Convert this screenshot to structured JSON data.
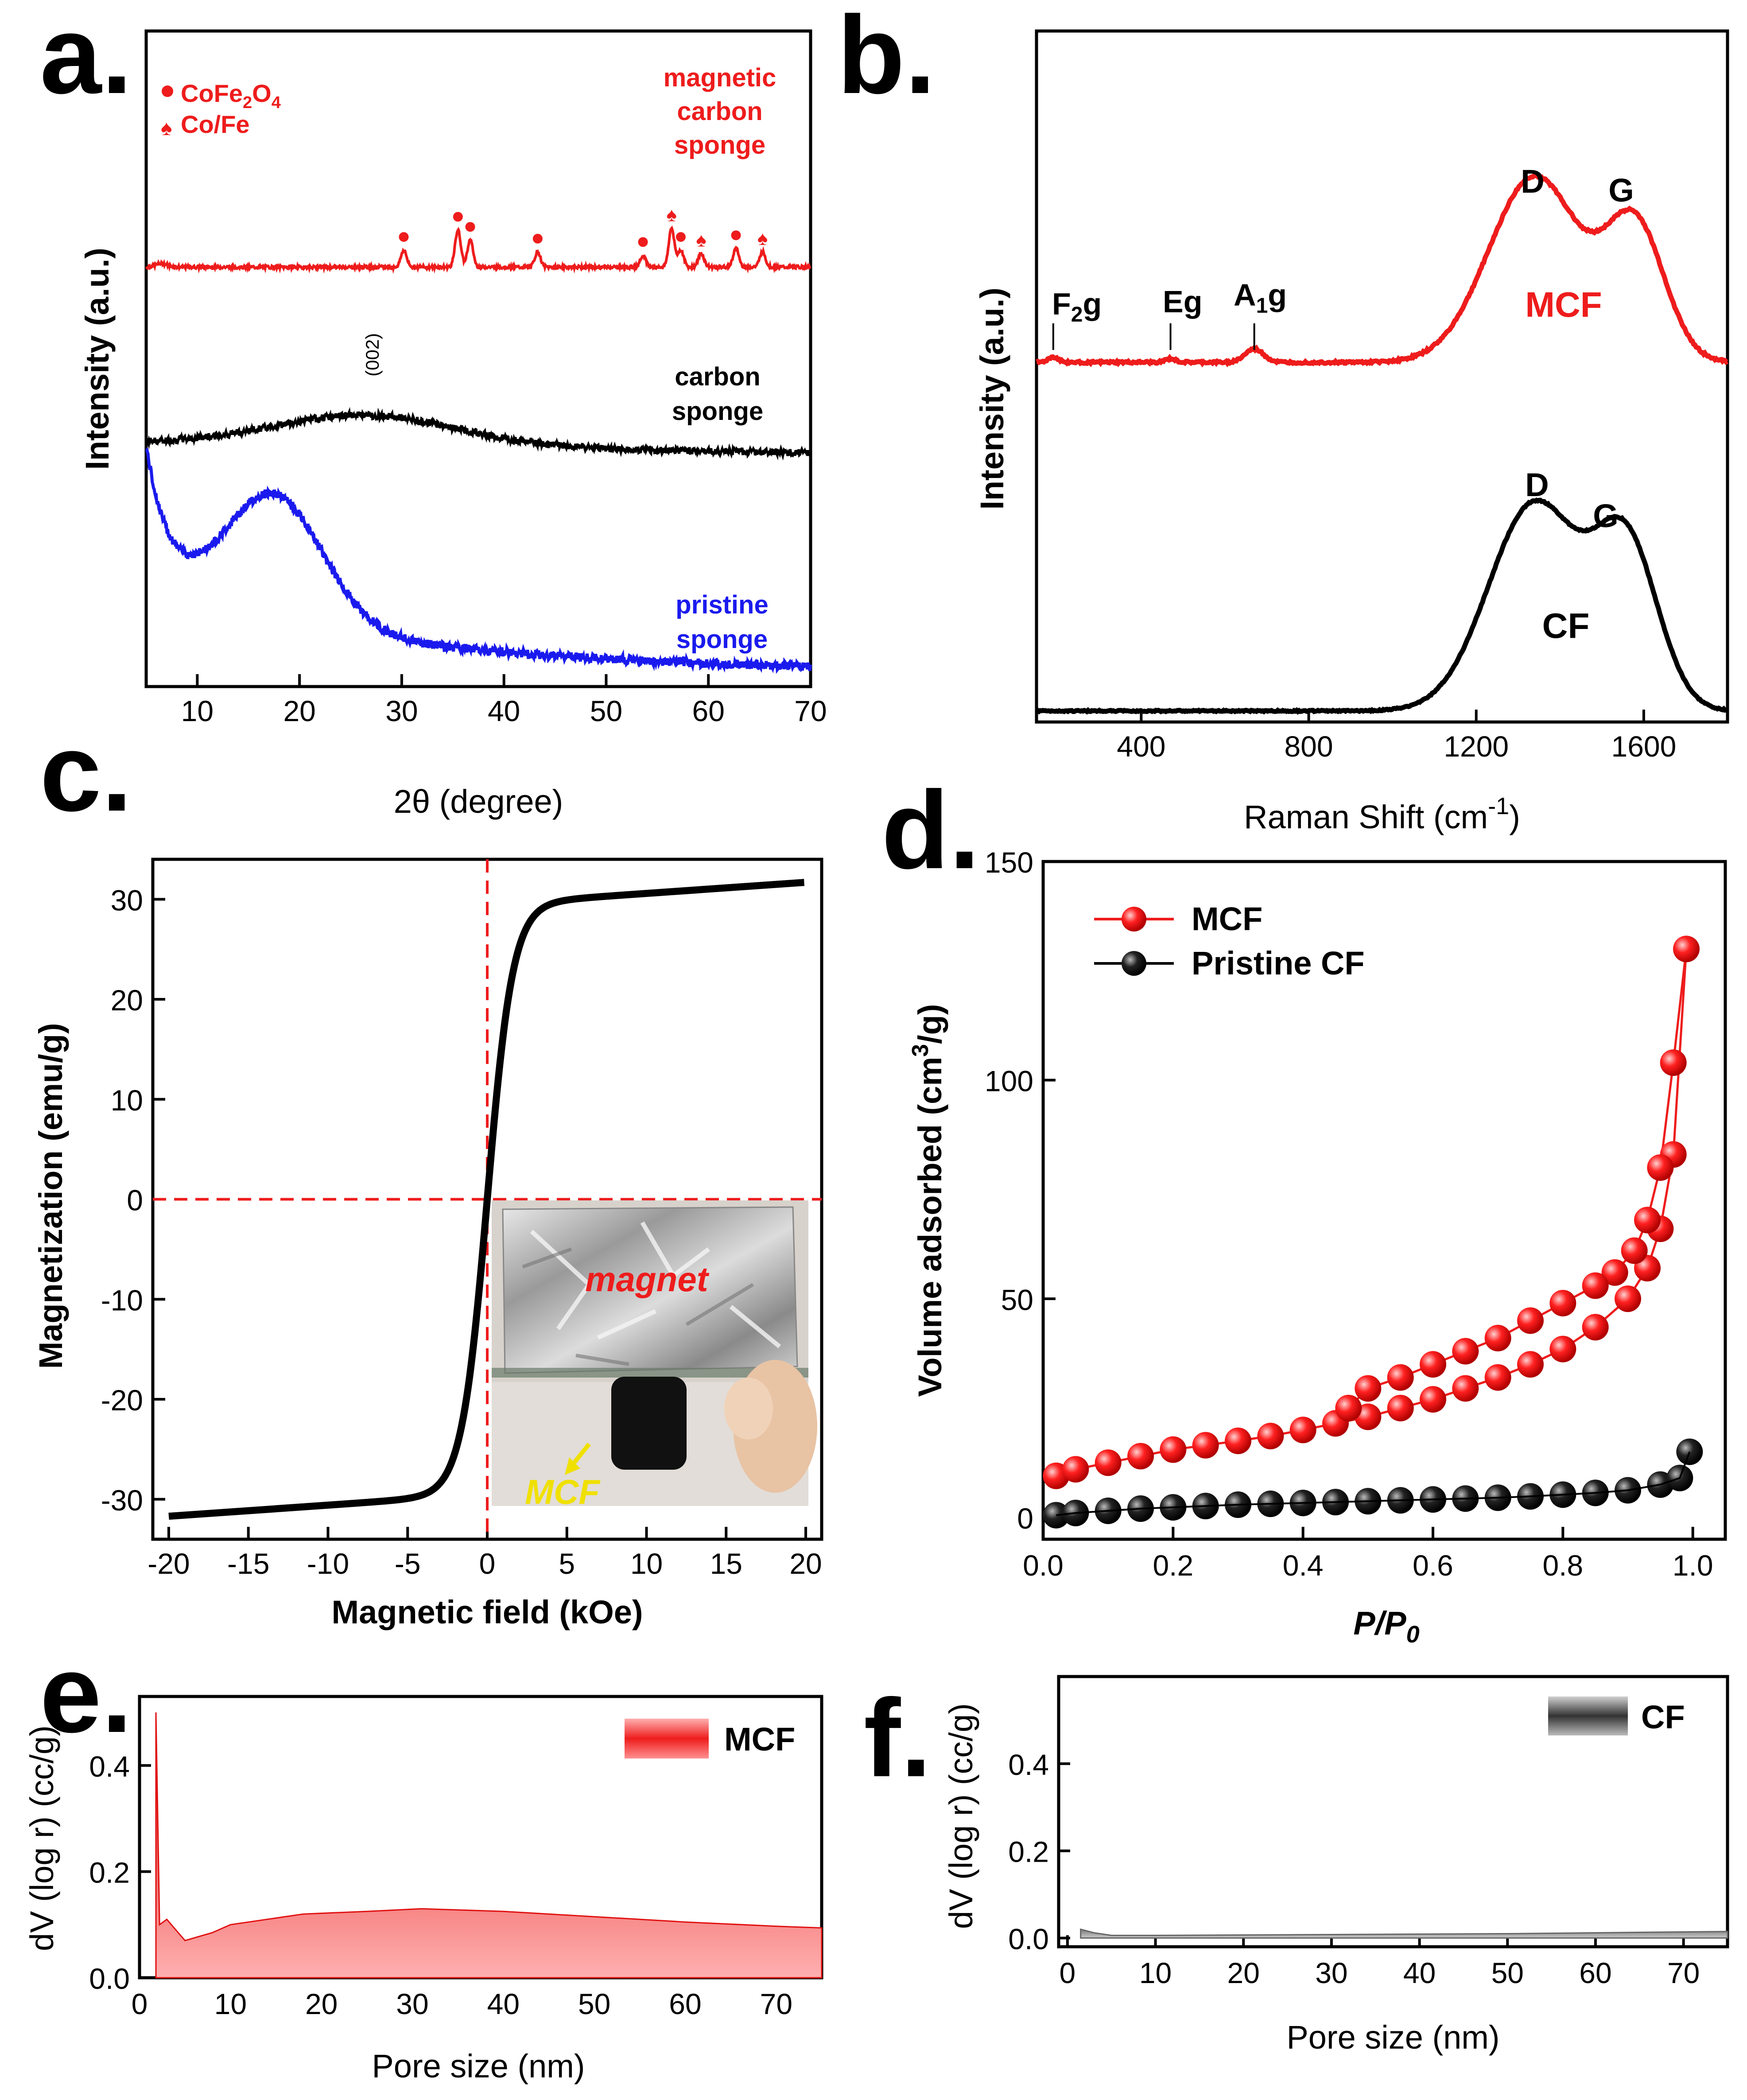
{
  "colors": {
    "red": "#ee1c1c",
    "black": "#000000",
    "blue": "#1a1aee",
    "yellow": "#f0e000"
  },
  "chart_data": [
    {
      "panel": "a.",
      "type": "line",
      "xlabel": "2θ (degree)",
      "ylabel": "Intensity (a.u.)",
      "xlim": [
        5,
        70
      ],
      "xticks": [
        10,
        20,
        30,
        40,
        50,
        60,
        70
      ],
      "legend": {
        "oxide": "CoFe2O4",
        "oxide_parts": [
          "CoFe",
          "2",
          "O",
          "4"
        ],
        "alloy": "Co/Fe"
      },
      "peak_label": "(002)",
      "series": [
        {
          "name": "magnetic carbon sponge",
          "lines": [
            "magnetic",
            "carbon",
            "sponge"
          ],
          "color": "#ee1c1c",
          "peaks": [
            {
              "x": 30.2,
              "h": 1.0,
              "m": "dot"
            },
            {
              "x": 35.5,
              "h": 2.2,
              "m": "dot"
            },
            {
              "x": 36.7,
              "h": 1.6,
              "m": "dot"
            },
            {
              "x": 43.3,
              "h": 0.9,
              "m": "dot"
            },
            {
              "x": 53.6,
              "h": 0.7,
              "m": "dot"
            },
            {
              "x": 57.3,
              "h": 1.0,
              "m": "dot"
            },
            {
              "x": 56.4,
              "h": 2.3,
              "m": "spade"
            },
            {
              "x": 59.3,
              "h": 0.8,
              "m": "spade"
            },
            {
              "x": 62.7,
              "h": 1.1,
              "m": "dot"
            },
            {
              "x": 65.3,
              "h": 0.9,
              "m": "spade"
            }
          ]
        },
        {
          "name": "carbon sponge",
          "lines": [
            "carbon",
            "sponge"
          ],
          "color": "#000000",
          "peak_x": 26.5
        },
        {
          "name": "pristine sponge",
          "lines": [
            "pristine",
            "sponge"
          ],
          "color": "#1a1aee",
          "peak_x": 17.5
        }
      ]
    },
    {
      "panel": "b.",
      "type": "line",
      "xlabel_main": "Raman Shift (cm",
      "xlabel_sup": "-1",
      "xlabel_end": ")",
      "ylabel": "Intensity (a.u.)",
      "xlim": [
        150,
        1800
      ],
      "xticks": [
        400,
        800,
        1200,
        1600
      ],
      "band_labels": {
        "d": "D",
        "g": "G",
        "f2g": "F",
        "f2g_sub": "2",
        "f2g_tail": "g",
        "eg": "Eg",
        "a1g": "A",
        "a1g_sub": "1",
        "a1g_tail": "g"
      },
      "mode_x": {
        "f2g": 190,
        "eg": 470,
        "a1g": 670
      },
      "series": [
        {
          "name": "MCF",
          "color": "#ee1c1c",
          "d_x": 1340,
          "g_x": 1580
        },
        {
          "name": "CF",
          "color": "#000000",
          "d_x": 1340,
          "g_x": 1560
        }
      ]
    },
    {
      "panel": "c.",
      "type": "line",
      "xlabel": "Magnetic field (kOe)",
      "ylabel": "Magnetization (emu/g)",
      "xlim": [
        -21,
        21
      ],
      "ylim": [
        -34,
        34
      ],
      "xticks": [
        -20,
        -15,
        -10,
        -5,
        0,
        5,
        10,
        15,
        20
      ],
      "yticks": [
        -30,
        -20,
        -10,
        0,
        10,
        20,
        30
      ],
      "saturation": 31.7,
      "inset": {
        "magnet_label": "magnet",
        "sample_label": "MCF"
      }
    },
    {
      "panel": "d.",
      "type": "scatter",
      "xlabel_main": "P/P",
      "xlabel_sub": "0",
      "ylabel_main": "Volume adsorbed (cm",
      "ylabel_sup": "3",
      "ylabel_end": "/g)",
      "xlim": [
        0,
        1.05
      ],
      "ylim": [
        -5,
        150
      ],
      "xticks": [
        "0.0",
        "0.2",
        "0.4",
        "0.6",
        "0.8",
        "1.0"
      ],
      "yticks": [
        "0",
        "50",
        "100",
        "150"
      ],
      "series": [
        {
          "name": "MCF",
          "color": "#ee1c1c",
          "adsorption": [
            [
              0.02,
              9.5
            ],
            [
              0.05,
              11
            ],
            [
              0.1,
              12.5
            ],
            [
              0.15,
              14
            ],
            [
              0.2,
              15.5
            ],
            [
              0.25,
              16.5
            ],
            [
              0.3,
              17.5
            ],
            [
              0.35,
              18.6
            ],
            [
              0.4,
              20
            ],
            [
              0.45,
              21.5
            ],
            [
              0.5,
              23
            ],
            [
              0.55,
              25
            ],
            [
              0.6,
              27
            ],
            [
              0.65,
              29.5
            ],
            [
              0.7,
              32
            ],
            [
              0.75,
              35
            ],
            [
              0.8,
              38.5
            ],
            [
              0.85,
              43.5
            ],
            [
              0.9,
              50
            ],
            [
              0.93,
              57
            ],
            [
              0.95,
              66
            ],
            [
              0.97,
              83
            ],
            [
              0.99,
              130
            ]
          ],
          "desorption": [
            [
              0.97,
              104
            ],
            [
              0.95,
              80
            ],
            [
              0.93,
              68
            ],
            [
              0.91,
              61
            ],
            [
              0.88,
              56
            ],
            [
              0.85,
              53
            ],
            [
              0.8,
              49
            ],
            [
              0.75,
              45
            ],
            [
              0.7,
              41
            ],
            [
              0.65,
              38
            ],
            [
              0.6,
              35
            ],
            [
              0.55,
              32
            ],
            [
              0.5,
              29.5
            ],
            [
              0.47,
              25
            ]
          ]
        },
        {
          "name": "Pristine CF",
          "color": "#000000",
          "adsorption": [
            [
              0.02,
              0.5
            ],
            [
              0.05,
              1
            ],
            [
              0.1,
              1.5
            ],
            [
              0.15,
              2
            ],
            [
              0.2,
              2.3
            ],
            [
              0.25,
              2.6
            ],
            [
              0.3,
              2.9
            ],
            [
              0.35,
              3.1
            ],
            [
              0.4,
              3.3
            ],
            [
              0.45,
              3.5
            ],
            [
              0.5,
              3.7
            ],
            [
              0.55,
              3.9
            ],
            [
              0.6,
              4.1
            ],
            [
              0.65,
              4.3
            ],
            [
              0.7,
              4.5
            ],
            [
              0.75,
              4.8
            ],
            [
              0.8,
              5.2
            ],
            [
              0.85,
              5.6
            ],
            [
              0.9,
              6.2
            ],
            [
              0.95,
              7.5
            ],
            [
              0.98,
              9
            ],
            [
              0.995,
              15
            ]
          ]
        }
      ]
    },
    {
      "panel": "e.",
      "type": "area",
      "xlabel": "Pore size (nm)",
      "ylabel": "dV (log r) (cc/g)",
      "xlim": [
        0,
        75
      ],
      "ylim": [
        0,
        0.53
      ],
      "xticks": [
        0,
        10,
        20,
        30,
        40,
        50,
        60,
        70
      ],
      "yticks": [
        "0.0",
        "0.2",
        "0.4"
      ],
      "series": [
        {
          "name": "MCF",
          "color": "#ee1c1c",
          "points": [
            [
              1.8,
              0
            ],
            [
              1.8,
              0.5
            ],
            [
              2.2,
              0.1
            ],
            [
              3.0,
              0.11
            ],
            [
              4.0,
              0.09
            ],
            [
              5.0,
              0.07
            ],
            [
              6.0,
              0.075
            ],
            [
              8.0,
              0.085
            ],
            [
              10,
              0.1
            ],
            [
              14,
              0.11
            ],
            [
              18,
              0.12
            ],
            [
              25,
              0.125
            ],
            [
              31,
              0.13
            ],
            [
              40,
              0.125
            ],
            [
              50,
              0.115
            ],
            [
              60,
              0.105
            ],
            [
              70,
              0.097
            ],
            [
              75,
              0.094
            ],
            [
              75,
              0
            ]
          ]
        }
      ]
    },
    {
      "panel": "f.",
      "type": "area",
      "xlabel": "Pore size (nm)",
      "ylabel": "dV (log r) (cc/g)",
      "xlim": [
        -1,
        75
      ],
      "ylim": [
        -0.02,
        0.6
      ],
      "xticks": [
        0,
        10,
        20,
        30,
        40,
        50,
        60,
        70
      ],
      "yticks": [
        "0.0",
        "0.2",
        "0.4"
      ],
      "series": [
        {
          "name": "CF",
          "color": "#555555",
          "points": [
            [
              1.5,
              0
            ],
            [
              1.5,
              0.02
            ],
            [
              3,
              0.012
            ],
            [
              5,
              0.006
            ],
            [
              10,
              0.006
            ],
            [
              30,
              0.008
            ],
            [
              50,
              0.01
            ],
            [
              70,
              0.014
            ],
            [
              75,
              0.015
            ],
            [
              75,
              0
            ]
          ]
        }
      ]
    }
  ]
}
